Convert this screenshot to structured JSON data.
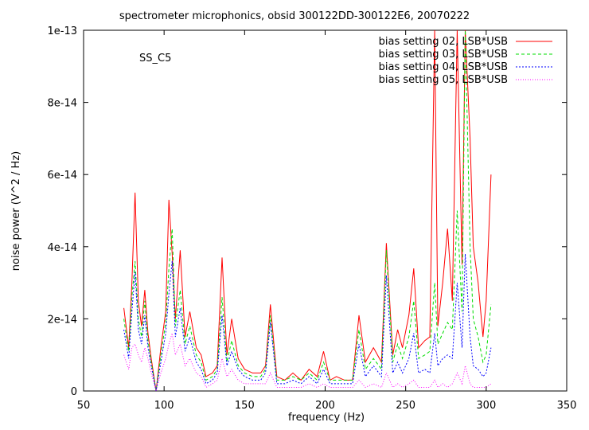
{
  "chart_data": {
    "type": "line",
    "title": "spectrometer microphonics, obsid 300122DD-300122E6, 20070222",
    "annotation": "SS_C5",
    "xlabel": "frequency (Hz)",
    "ylabel": "noise power (V^2 / Hz)",
    "xlim": [
      50,
      350
    ],
    "ylim": [
      0,
      1e-13
    ],
    "xticks": [
      50,
      100,
      150,
      200,
      250,
      300,
      350
    ],
    "xtick_labels": [
      "50",
      "100",
      "150",
      "200",
      "250",
      "300",
      "350"
    ],
    "yticks": [
      0,
      2e-14,
      4e-14,
      6e-14,
      8e-14,
      1e-13
    ],
    "ytick_labels": [
      "0",
      "2e-14",
      "4e-14",
      "6e-14",
      "8e-14",
      "1e-13"
    ],
    "grid": false,
    "legend_position": "top-right",
    "x": [
      75,
      78,
      80,
      82,
      84,
      86,
      88,
      90,
      92,
      95,
      98,
      101,
      103,
      105,
      107,
      110,
      113,
      116,
      120,
      123,
      126,
      130,
      133,
      136,
      139,
      142,
      146,
      150,
      155,
      160,
      163,
      166,
      170,
      175,
      180,
      185,
      190,
      195,
      199,
      203,
      207,
      212,
      217,
      221,
      225,
      230,
      235,
      238,
      242,
      245,
      248,
      252,
      255,
      258,
      262,
      265,
      268,
      270,
      273,
      276,
      279,
      282,
      285,
      287,
      290,
      292,
      295,
      298,
      300,
      303
    ],
    "series": [
      {
        "name": "bias setting 02, LSB*USB",
        "color": "#ff0000",
        "dash": "none",
        "values": [
          2.3e-14,
          1.2e-14,
          3e-14,
          5.5e-14,
          2.5e-14,
          1.8e-14,
          2.8e-14,
          1.6e-14,
          9e-15,
          0,
          1.2e-14,
          2.2e-14,
          5.3e-14,
          3.8e-14,
          2e-14,
          3.9e-14,
          1.5e-14,
          2.2e-14,
          1.2e-14,
          1e-14,
          4e-15,
          5e-15,
          7e-15,
          3.7e-14,
          1e-14,
          2e-14,
          9e-15,
          6e-15,
          5e-15,
          5e-15,
          7e-15,
          2.4e-14,
          4e-15,
          3e-15,
          5e-15,
          3e-15,
          6e-15,
          4e-15,
          1.1e-14,
          3e-15,
          4e-15,
          3e-15,
          3e-15,
          2.1e-14,
          8e-15,
          1.2e-14,
          8e-15,
          4.1e-14,
          1e-14,
          1.7e-14,
          1.2e-14,
          2.1e-14,
          3.4e-14,
          1.2e-14,
          1.4e-14,
          1.5e-14,
          1e-13,
          1.8e-14,
          3e-14,
          4.5e-14,
          2.5e-14,
          1e-13,
          3.5e-14,
          1e-13,
          7e-14,
          4e-14,
          3e-14,
          1.5e-14,
          2.5e-14,
          6e-14
        ]
      },
      {
        "name": "bias setting 03, LSB*USB",
        "color": "#00dd00",
        "dash": "4,3",
        "values": [
          2e-14,
          1.1e-14,
          2.6e-14,
          3.6e-14,
          2e-14,
          1.5e-14,
          2.5e-14,
          1.4e-14,
          8e-15,
          0,
          1e-14,
          1.9e-14,
          3.4e-14,
          4.5e-14,
          1.8e-14,
          2.8e-14,
          1.3e-14,
          1.8e-14,
          1e-14,
          8e-15,
          3e-15,
          4e-15,
          6e-15,
          2.6e-14,
          8e-15,
          1.4e-14,
          7e-15,
          5e-15,
          4e-15,
          4e-15,
          6e-15,
          2.1e-14,
          3e-15,
          3e-15,
          4e-15,
          3e-15,
          5e-15,
          3e-15,
          8e-15,
          3e-15,
          3e-15,
          3e-15,
          3e-15,
          1.7e-14,
          6e-15,
          9e-15,
          6e-15,
          3.9e-14,
          8e-15,
          1.3e-14,
          9e-15,
          1.5e-14,
          2.5e-14,
          9e-15,
          1e-14,
          1.1e-14,
          3e-14,
          1.3e-14,
          1.6e-14,
          1.9e-14,
          1.7e-14,
          5e-14,
          2.2e-14,
          1e-13,
          4e-14,
          2e-14,
          1.5e-14,
          8e-15,
          1e-14,
          2.4e-14
        ]
      },
      {
        "name": "bias setting 04, LSB*USB",
        "color": "#0000ff",
        "dash": "2,2",
        "values": [
          1.7e-14,
          9e-15,
          2.2e-14,
          3.3e-14,
          1.7e-14,
          1.3e-14,
          2.1e-14,
          1.2e-14,
          7e-15,
          0,
          8e-15,
          1.6e-14,
          2.7e-14,
          3.6e-14,
          1.5e-14,
          2.3e-14,
          1.1e-14,
          1.5e-14,
          8e-15,
          6e-15,
          2e-15,
          3e-15,
          5e-15,
          2.1e-14,
          7e-15,
          1.1e-14,
          6e-15,
          4e-15,
          3e-15,
          3e-15,
          5e-15,
          1.9e-14,
          2e-15,
          2e-15,
          3e-15,
          2e-15,
          4e-15,
          2e-15,
          6e-15,
          2e-15,
          2e-15,
          2e-15,
          2e-15,
          1.3e-14,
          4e-15,
          7e-15,
          4e-15,
          3.2e-14,
          5e-15,
          8e-15,
          5e-15,
          9e-15,
          1.6e-14,
          5e-15,
          6e-15,
          5e-15,
          1.6e-14,
          7e-15,
          9e-15,
          1e-14,
          9e-15,
          3e-14,
          1.2e-14,
          3.8e-14,
          1.5e-14,
          7e-15,
          6e-15,
          4e-15,
          5e-15,
          1.2e-14
        ]
      },
      {
        "name": "bias setting 05, LSB*USB",
        "color": "#ff00ff",
        "dash": "1,2",
        "values": [
          1e-14,
          6e-15,
          1.2e-14,
          1.3e-14,
          1e-14,
          8e-15,
          1.2e-14,
          9e-15,
          5e-15,
          0,
          5e-15,
          9e-15,
          1.3e-14,
          1.6e-14,
          1e-14,
          1.3e-14,
          7e-15,
          9e-15,
          5e-15,
          4e-15,
          1e-15,
          2e-15,
          3e-15,
          9e-15,
          4e-15,
          6e-15,
          3e-15,
          2e-15,
          2e-15,
          2e-15,
          2e-15,
          5e-15,
          1e-15,
          1e-15,
          1e-15,
          1e-15,
          2e-15,
          1e-15,
          2e-15,
          1e-15,
          1e-15,
          1e-15,
          1e-15,
          3e-15,
          1e-15,
          2e-15,
          1e-15,
          5e-15,
          1e-15,
          2e-15,
          1e-15,
          2e-15,
          3e-15,
          1e-15,
          1e-15,
          1e-15,
          3e-15,
          1e-15,
          2e-15,
          1e-15,
          2e-15,
          5e-15,
          2e-15,
          7e-15,
          2e-15,
          1e-15,
          1e-15,
          1e-15,
          1e-15,
          2e-15
        ]
      }
    ]
  }
}
